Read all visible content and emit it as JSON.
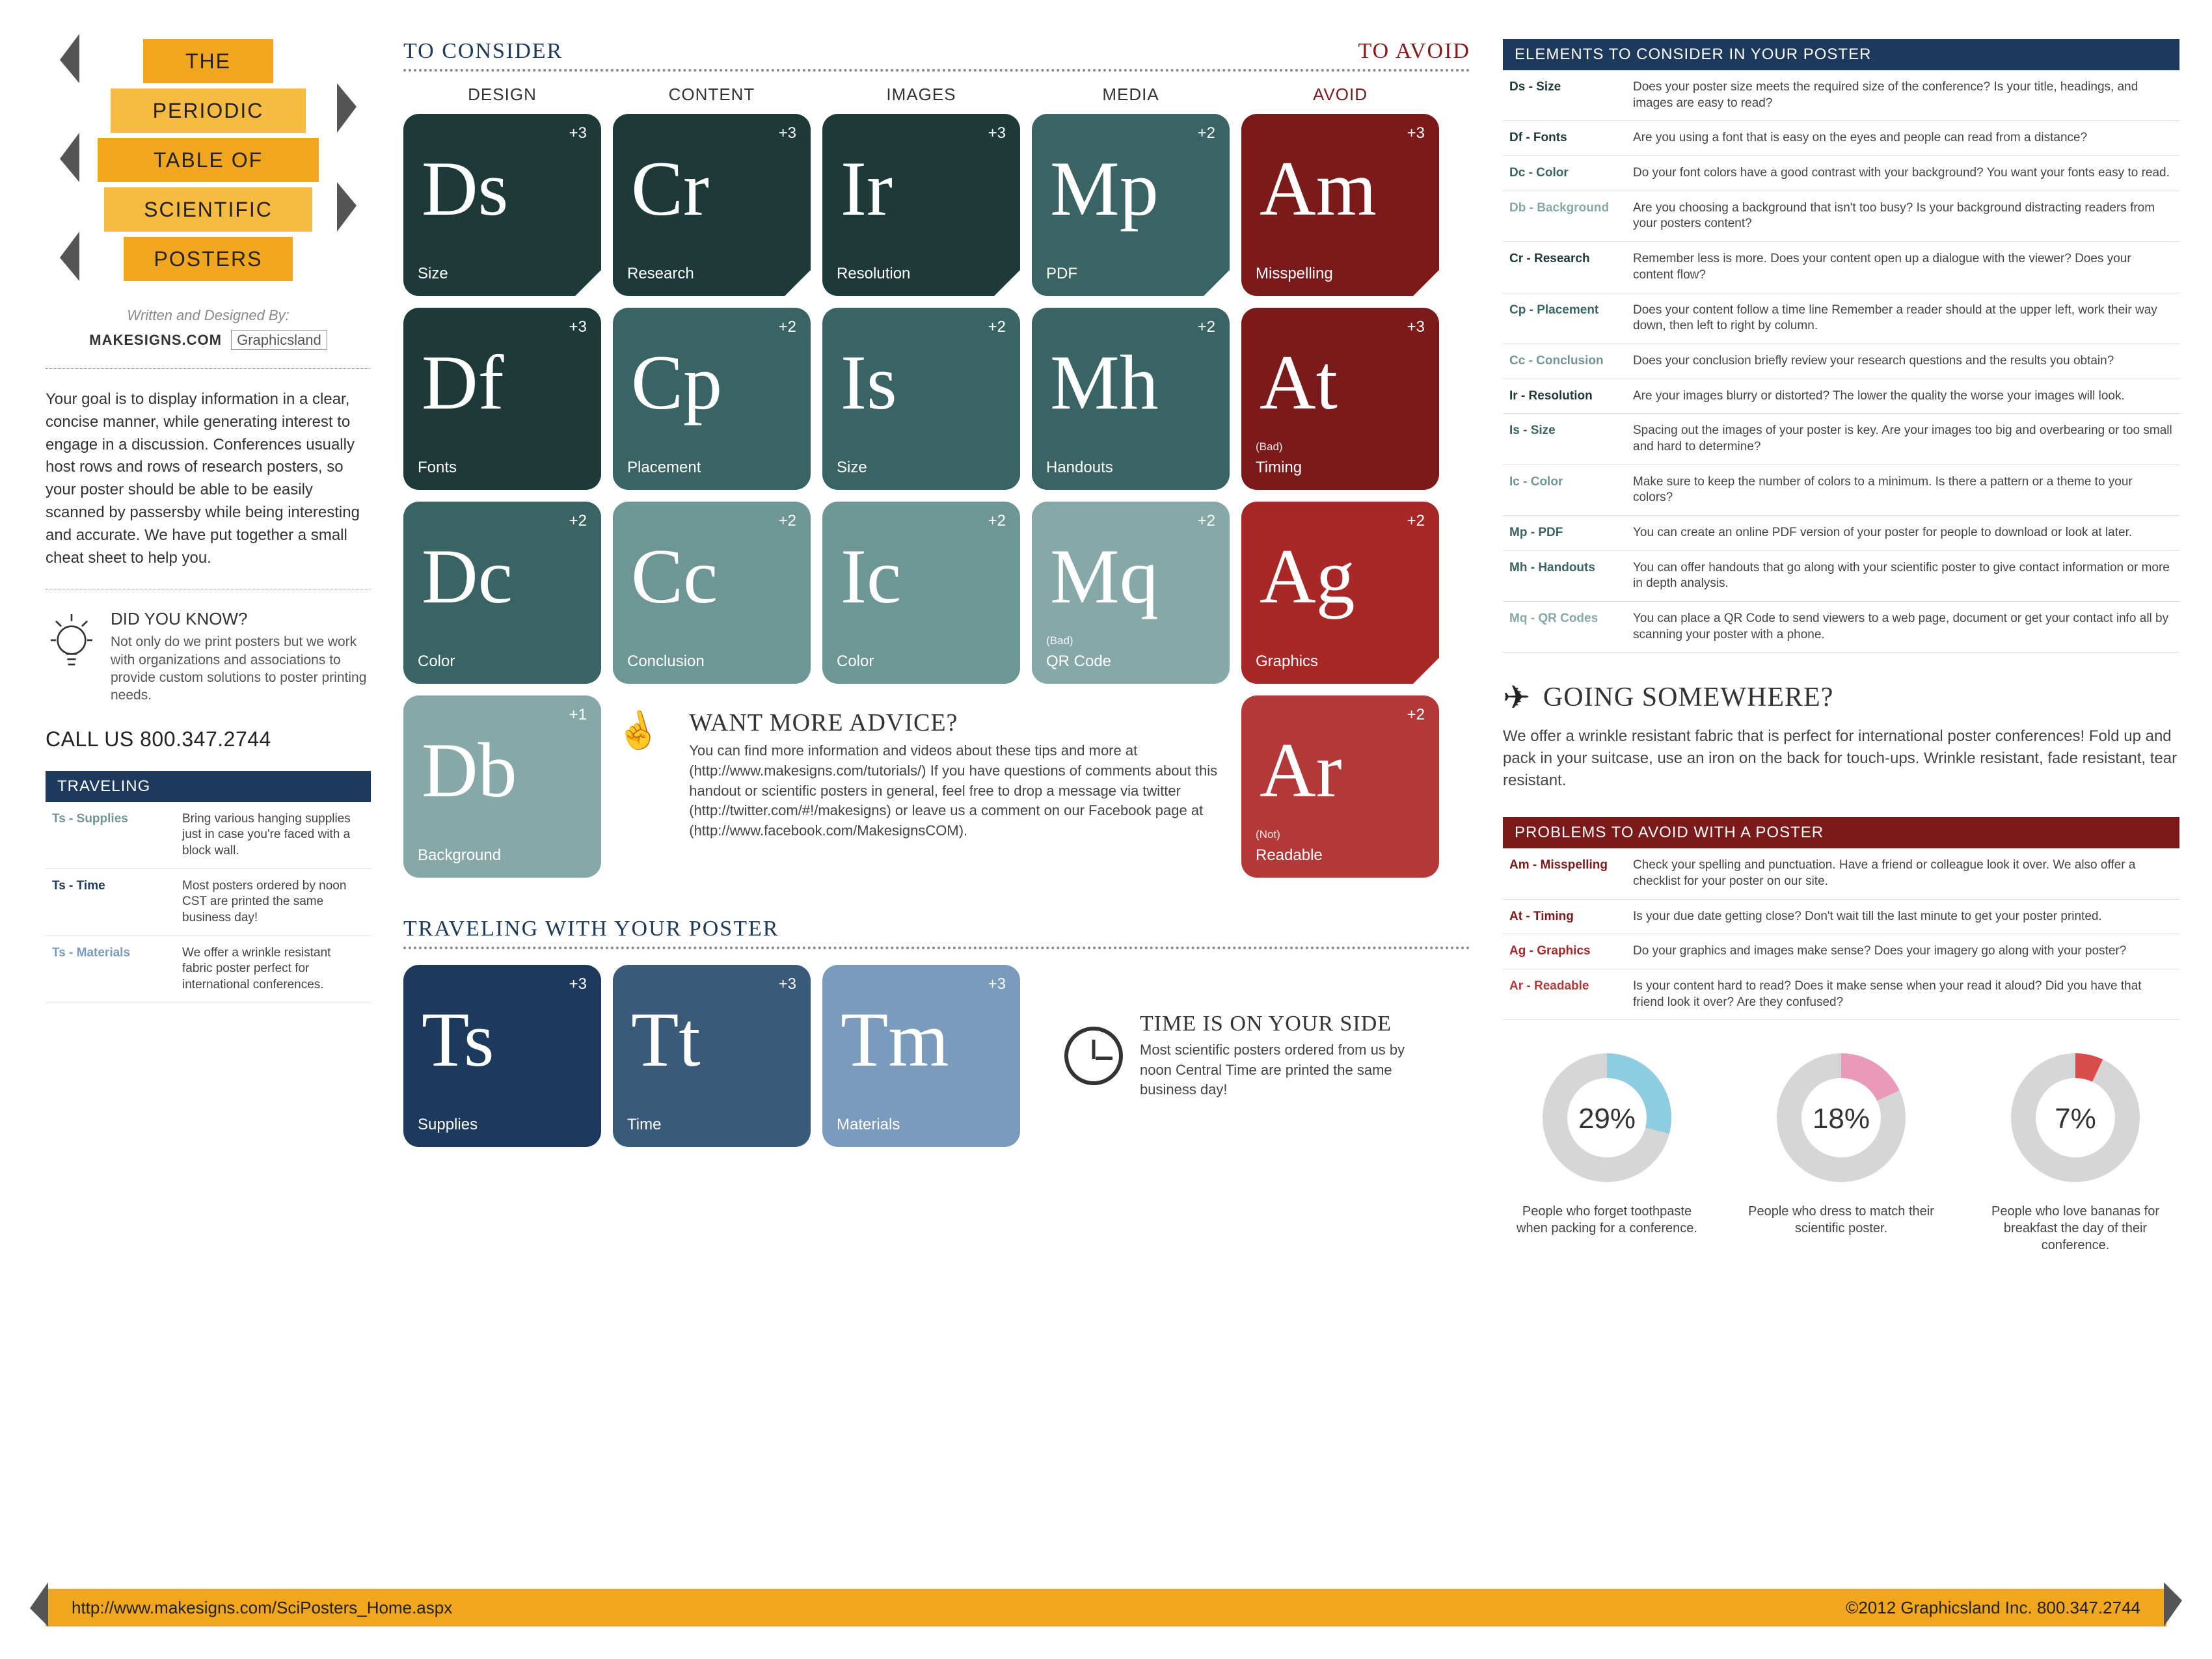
{
  "colors": {
    "amber": "#f0a71f",
    "amber_lt": "#f7bb42",
    "navy": "#1d3a5c",
    "teal_dk": "#1e3a38",
    "teal_md": "#3a6463",
    "teal_lt": "#6e9695",
    "teal_xl": "#86a9a7",
    "blue_md": "#3a5a7a",
    "blue_lt": "#7a9bbc",
    "red_dk": "#7a1a1a",
    "red_md": "#a82828",
    "red_lt": "#b33939",
    "donut_bg": "#d6d6d6",
    "donut_blue": "#8ecde0",
    "donut_pink": "#e89ab8",
    "donut_red": "#d84c4c"
  },
  "ribbon": [
    "THE",
    "PERIODIC",
    "TABLE OF",
    "SCIENTIFIC",
    "POSTERS"
  ],
  "credit": {
    "line": "Written and Designed By:",
    "mk": "MAKESIGNS.COM",
    "gl": "Graphicsland"
  },
  "intro": "Your goal is to display information in a clear, concise manner, while generating interest to engage in a discussion. Conferences usually host rows and rows of research posters, so your poster should be able to be easily scanned by passersby while being interesting and accurate. We have put together a small cheat sheet to help you.",
  "dyk": {
    "title": "DID YOU KNOW?",
    "body": "Not only do we print posters but we work with organizations and associations to provide custom solutions to poster printing needs."
  },
  "call": "CALL US 800.347.2744",
  "traveling_box": {
    "header": "TRAVELING",
    "rows": [
      {
        "k": "Ts - Supplies",
        "c": "teal_lt",
        "v": "Bring various hanging supplies just in case you're faced with a block wall."
      },
      {
        "k": "Ts - Time",
        "c": "navy",
        "v": "Most posters ordered by noon CST are printed the same business day!"
      },
      {
        "k": "Ts - Materials",
        "c": "blue_lt",
        "v": "We offer a wrinkle resistant fabric poster perfect for international conferences."
      }
    ]
  },
  "headers": {
    "consider": "TO CONSIDER",
    "avoid": "TO AVOID",
    "traveling": "TRAVELING WITH YOUR POSTER"
  },
  "col_labels": [
    "DESIGN",
    "CONTENT",
    "IMAGES",
    "MEDIA",
    "AVOID"
  ],
  "grid": [
    [
      {
        "sym": "Ds",
        "lab": "Size",
        "pts": "+3",
        "c": "teal_dk",
        "cut": true
      },
      {
        "sym": "Cr",
        "lab": "Research",
        "pts": "+3",
        "c": "teal_dk",
        "cut": true
      },
      {
        "sym": "Ir",
        "lab": "Resolution",
        "pts": "+3",
        "c": "teal_dk",
        "cut": true
      },
      {
        "sym": "Mp",
        "lab": "PDF",
        "pts": "+2",
        "c": "teal_md",
        "cut": true
      },
      {
        "sym": "Am",
        "lab": "Misspelling",
        "pts": "+3",
        "c": "red_dk",
        "cut": true
      }
    ],
    [
      {
        "sym": "Df",
        "lab": "Fonts",
        "pts": "+3",
        "c": "teal_dk"
      },
      {
        "sym": "Cp",
        "lab": "Placement",
        "pts": "+2",
        "c": "teal_md"
      },
      {
        "sym": "Is",
        "lab": "Size",
        "pts": "+2",
        "c": "teal_md"
      },
      {
        "sym": "Mh",
        "lab": "Handouts",
        "pts": "+2",
        "c": "teal_md"
      },
      {
        "sym": "At",
        "lab": "Timing",
        "pre": "(Bad)",
        "pts": "+3",
        "c": "red_dk"
      }
    ],
    [
      {
        "sym": "Dc",
        "lab": "Color",
        "pts": "+2",
        "c": "teal_md"
      },
      {
        "sym": "Cc",
        "lab": "Conclusion",
        "pts": "+2",
        "c": "teal_lt"
      },
      {
        "sym": "Ic",
        "lab": "Color",
        "pts": "+2",
        "c": "teal_lt"
      },
      {
        "sym": "Mq",
        "lab": "QR Code",
        "pre": "(Bad)",
        "pts": "+2",
        "c": "teal_xl"
      },
      {
        "sym": "Ag",
        "lab": "Graphics",
        "pts": "+2",
        "c": "red_md",
        "cut": true
      }
    ],
    [
      {
        "sym": "Db",
        "lab": "Background",
        "pts": "+1",
        "c": "teal_xl"
      },
      null,
      null,
      null,
      {
        "sym": "Ar",
        "lab": "Readable",
        "pre": "(Not)",
        "pts": "+2",
        "c": "red_lt"
      }
    ]
  ],
  "advice": {
    "title": "WANT MORE ADVICE?",
    "body": "You can find more information and videos about these tips and more at (http://www.makesigns.com/tutorials/) If you have questions of comments about this handout or scientific posters in general, feel free to drop a message via twitter (http://twitter.com/#!/makesigns) or leave us a comment on our Facebook page at (http://www.facebook.com/MakesignsCOM)."
  },
  "travel_tiles": [
    {
      "sym": "Ts",
      "lab": "Supplies",
      "pts": "+3",
      "c": "navy"
    },
    {
      "sym": "Tt",
      "lab": "Time",
      "pts": "+3",
      "c": "blue_md"
    },
    {
      "sym": "Tm",
      "lab": "Materials",
      "pts": "+3",
      "c": "blue_lt"
    }
  ],
  "time": {
    "title": "TIME IS ON YOUR SIDE",
    "body": "Most scientific posters ordered from us by noon Central Time are printed the same business day!"
  },
  "elements_box": {
    "header": "ELEMENTS TO CONSIDER IN YOUR POSTER",
    "rows": [
      {
        "k": "Ds - Size",
        "c": "teal_dk",
        "v": "Does your poster size meets the required size of the conference? Is your title, headings, and images are easy to read?"
      },
      {
        "k": "Df - Fonts",
        "c": "teal_dk",
        "v": "Are you using a font that is easy on the eyes and people can read from a distance?"
      },
      {
        "k": "Dc - Color",
        "c": "teal_md",
        "v": "Do your font colors have a good contrast with your background? You want your fonts easy to read."
      },
      {
        "k": "Db - Background",
        "c": "teal_xl",
        "v": "Are you choosing a background that isn't too busy? Is your background distracting readers from your posters content?"
      },
      {
        "k": "Cr - Research",
        "c": "teal_dk",
        "v": "Remember less is more. Does your content open up a dialogue with the viewer? Does your content flow?"
      },
      {
        "k": "Cp - Placement",
        "c": "teal_md",
        "v": "Does your content follow a time line Remember a reader should at the upper left, work their way down, then left to right by column."
      },
      {
        "k": "Cc - Conclusion",
        "c": "teal_lt",
        "v": "Does your conclusion briefly review your research questions and the results you obtain?"
      },
      {
        "k": "Ir - Resolution",
        "c": "teal_dk",
        "v": "Are your images blurry or distorted? The lower the quality the worse your images will look."
      },
      {
        "k": "Is - Size",
        "c": "teal_md",
        "v": "Spacing out the images of your poster is key. Are your images too big and overbearing or too small and hard to determine?"
      },
      {
        "k": "Ic - Color",
        "c": "teal_lt",
        "v": "Make sure to keep the number of colors to a minimum. Is there a pattern or a theme to your colors?"
      },
      {
        "k": "Mp - PDF",
        "c": "teal_md",
        "v": "You can create an online PDF version of your poster for people to download or look at later."
      },
      {
        "k": "Mh - Handouts",
        "c": "teal_md",
        "v": "You can offer handouts that go along with your scientific poster to give contact information or more in depth analysis."
      },
      {
        "k": "Mq - QR Codes",
        "c": "teal_xl",
        "v": "You can place a QR Code to send viewers to a web page, document or get your contact info all by scanning your poster with a phone."
      }
    ]
  },
  "going": {
    "title": "GOING SOMEWHERE?",
    "body": "We offer a wrinkle resistant fabric that is perfect for international poster conferences! Fold up and pack in your suitcase, use an iron on the back for touch-ups. Wrinkle resistant, fade resistant, tear resistant."
  },
  "problems_box": {
    "header": "PROBLEMS TO AVOID WITH A POSTER",
    "rows": [
      {
        "k": "Am - Misspelling",
        "c": "red_dk",
        "v": "Check your spelling and punctuation. Have a friend or colleague look it over. We also offer a checklist for your poster on our site."
      },
      {
        "k": "At - Timing",
        "c": "red_dk",
        "v": "Is your due date getting close? Don't wait till the last minute to get your poster printed."
      },
      {
        "k": "Ag - Graphics",
        "c": "red_md",
        "v": "Do your graphics and images make sense? Does your imagery go along with your poster?"
      },
      {
        "k": "Ar - Readable",
        "c": "red_lt",
        "v": "Is your content hard to read? Does it make sense when your read it aloud? Did you have that friend look it over? Are they confused?"
      }
    ]
  },
  "donuts": [
    {
      "pct": 29,
      "color": "donut_blue",
      "cap": "People who forget toothpaste when packing for a conference."
    },
    {
      "pct": 18,
      "color": "donut_pink",
      "cap": "People who dress to match their scientific poster."
    },
    {
      "pct": 7,
      "color": "donut_red",
      "cap": "People who love bananas for breakfast the day of their conference."
    }
  ],
  "footer": {
    "url": "http://www.makesigns.com/SciPosters_Home.aspx",
    "copy": "©2012 Graphicsland Inc.  800.347.2744"
  }
}
